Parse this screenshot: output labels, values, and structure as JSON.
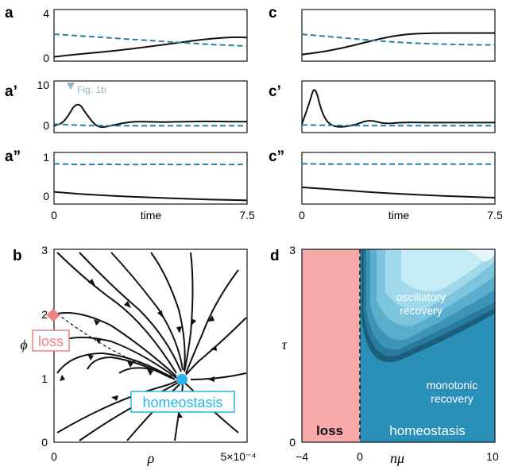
{
  "panel_labels": {
    "a": "a",
    "a1": "a’",
    "a2": "a”",
    "b": "b",
    "c": "c",
    "c1": "c’",
    "c2": "c”",
    "d": "d"
  },
  "annotation": "Fig. 1b",
  "colors": {
    "solid": "#111111",
    "dashed": "#2a7fa8",
    "loss": "#f7a8a8",
    "homeo": "#2b90b8",
    "marker_loss": "#f08080",
    "marker_homeo": "#29b3e6"
  },
  "time_axis": {
    "label": "time",
    "ticks": [
      "0",
      "7.5"
    ]
  },
  "a_ticks": {
    "top": "4",
    "bottom": "0"
  },
  "a1_ticks": {
    "top": "10",
    "bottom": "0"
  },
  "a2_ticks": {
    "top": "1",
    "bottom": "0"
  },
  "b": {
    "xlabel": "ρ",
    "ylabel": "ϕ",
    "xticks": [
      "0",
      "5×10⁻⁴"
    ],
    "yticks": [
      "0",
      "1",
      "2",
      "3"
    ],
    "loss_label": "loss",
    "homeo_label": "homeostasis"
  },
  "d": {
    "xlabel": "nμ",
    "ylabel": "τ",
    "xticks": [
      "−4",
      "0",
      "10"
    ],
    "yticks": [
      "0",
      "3"
    ],
    "osc_label_1": "oscillatory",
    "osc_label_2": "recovery",
    "mono_label_1": "monotonic",
    "mono_label_2": "recovery",
    "loss_label": "loss",
    "homeo_label": "homeostasis"
  },
  "chart_data": [
    {
      "type": "line",
      "panel": "a",
      "xlim": [
        0,
        7.5
      ],
      "ylim": [
        0,
        4
      ],
      "series": [
        {
          "x": [
            0,
            1,
            2,
            3,
            4,
            5,
            6,
            7,
            7.5
          ],
          "values": [
            0.1,
            0.35,
            0.55,
            0.8,
            1.1,
            1.4,
            1.7,
            1.85,
            1.8
          ]
        },
        {
          "x": [
            0,
            1,
            2,
            3,
            4,
            5,
            6,
            7,
            7.5
          ],
          "values": [
            2.1,
            1.95,
            1.8,
            1.65,
            1.5,
            1.35,
            1.2,
            1.1,
            1.05
          ]
        }
      ]
    },
    {
      "type": "line",
      "panel": "a1",
      "xlim": [
        0,
        7.5
      ],
      "ylim": [
        0,
        10
      ],
      "series": [
        {
          "x": [
            0,
            0.4,
            0.9,
            1.3,
            1.7,
            2.2,
            3,
            4,
            5,
            6,
            7,
            7.5
          ],
          "values": [
            0.8,
            1.5,
            6.5,
            3.0,
            0.3,
            0.8,
            1.8,
            1.6,
            1.7,
            1.8,
            1.7,
            1.7
          ]
        },
        {
          "x": [
            0,
            1,
            2,
            3,
            4,
            5,
            6,
            7,
            7.5
          ],
          "values": [
            1.2,
            0.9,
            0.8,
            0.8,
            0.8,
            0.8,
            0.8,
            0.8,
            0.8
          ]
        }
      ]
    },
    {
      "type": "line",
      "panel": "a2",
      "xlim": [
        0,
        7.5
      ],
      "ylim": [
        0,
        1
      ],
      "series": [
        {
          "x": [
            0,
            1,
            2,
            3,
            4,
            5,
            6,
            7,
            7.5
          ],
          "values": [
            0.2,
            0.15,
            0.12,
            0.09,
            0.07,
            0.05,
            0.03,
            0.02,
            0.01
          ]
        },
        {
          "x": [
            0,
            1,
            2,
            3,
            4,
            5,
            6,
            7,
            7.5
          ],
          "values": [
            0.82,
            0.8,
            0.81,
            0.8,
            0.81,
            0.8,
            0.81,
            0.8,
            0.81
          ]
        }
      ]
    },
    {
      "type": "line",
      "panel": "c",
      "xlim": [
        0,
        7.5
      ],
      "ylim": [
        0,
        4
      ],
      "series": [
        {
          "x": [
            0,
            1,
            2,
            3,
            4,
            5,
            6,
            7,
            7.5
          ],
          "values": [
            0.3,
            0.6,
            1.1,
            1.7,
            2.1,
            2.2,
            2.2,
            2.2,
            2.2
          ]
        },
        {
          "x": [
            0,
            1,
            2,
            3,
            4,
            5,
            6,
            7,
            7.5
          ],
          "values": [
            2.1,
            1.9,
            1.7,
            1.5,
            1.35,
            1.25,
            1.2,
            1.15,
            1.15
          ]
        }
      ]
    },
    {
      "type": "line",
      "panel": "c1",
      "xlim": [
        0,
        7.5
      ],
      "ylim": [
        0,
        10
      ],
      "series": [
        {
          "x": [
            0,
            0.3,
            0.5,
            0.8,
            1.2,
            2,
            2.6,
            3.2,
            4,
            5,
            6,
            7,
            7.5
          ],
          "values": [
            1.2,
            6,
            10,
            3,
            0.4,
            0.8,
            2.2,
            1.2,
            1.6,
            1.5,
            1.5,
            1.5,
            1.5
          ]
        },
        {
          "x": [
            0,
            1,
            2,
            3,
            4,
            5,
            6,
            7,
            7.5
          ],
          "values": [
            1.0,
            0.9,
            0.85,
            0.85,
            0.85,
            0.85,
            0.85,
            0.85,
            0.85
          ]
        }
      ]
    },
    {
      "type": "line",
      "panel": "c2",
      "xlim": [
        0,
        7.5
      ],
      "ylim": [
        0,
        1
      ],
      "series": [
        {
          "x": [
            0,
            1,
            2,
            3,
            4,
            5,
            6,
            7,
            7.5
          ],
          "values": [
            0.3,
            0.26,
            0.22,
            0.18,
            0.15,
            0.12,
            0.1,
            0.08,
            0.07
          ]
        },
        {
          "x": [
            0,
            1,
            2,
            3,
            4,
            5,
            6,
            7,
            7.5
          ],
          "values": [
            0.82,
            0.81,
            0.81,
            0.81,
            0.81,
            0.81,
            0.81,
            0.81,
            0.81
          ]
        }
      ]
    },
    {
      "type": "scatter",
      "panel": "b",
      "xlim": [
        0,
        0.0005
      ],
      "ylim": [
        0,
        3
      ],
      "series": [
        {
          "name": "loss",
          "x": [
            0
          ],
          "values": [
            2
          ]
        },
        {
          "name": "homeostasis",
          "x": [
            0.00029
          ],
          "values": [
            1
          ]
        }
      ]
    }
  ]
}
